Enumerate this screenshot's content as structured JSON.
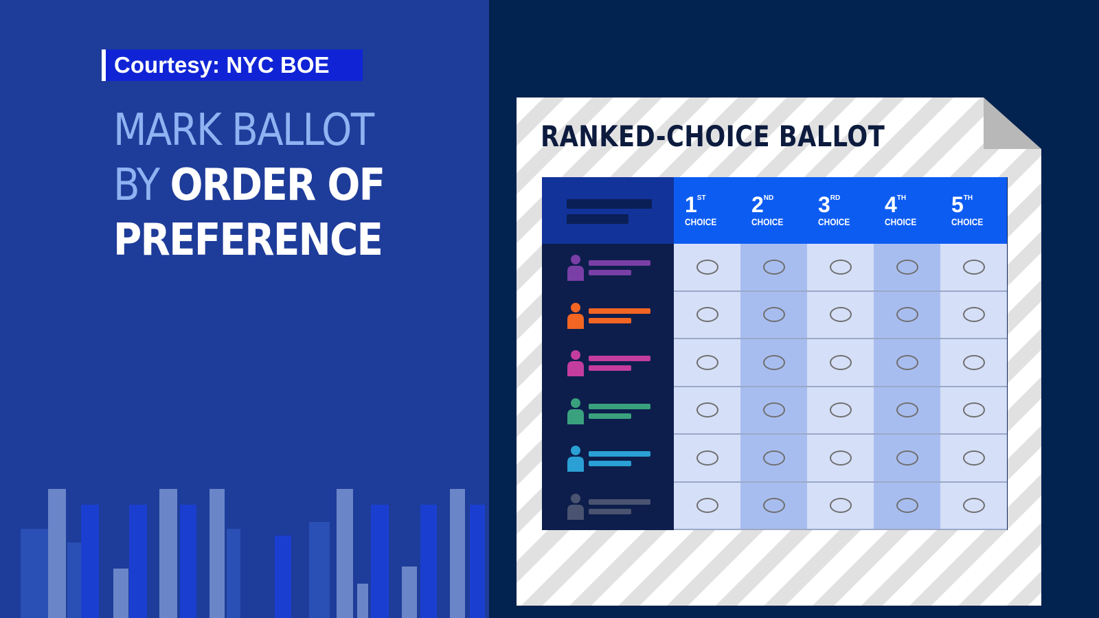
{
  "courtesy": "Courtesy: NYC BOE",
  "headline": {
    "line1": "MARK BALLOT",
    "line2_light": "BY",
    "line2_bold": "ORDER OF",
    "line3": "PREFERENCE"
  },
  "ballot": {
    "title": "RANKED-CHOICE BALLOT",
    "choices": [
      {
        "num": "1",
        "suffix": "ST",
        "word": "CHOICE"
      },
      {
        "num": "2",
        "suffix": "ND",
        "word": "CHOICE"
      },
      {
        "num": "3",
        "suffix": "RD",
        "word": "CHOICE"
      },
      {
        "num": "4",
        "suffix": "TH",
        "word": "CHOICE"
      },
      {
        "num": "5",
        "suffix": "TH",
        "word": "CHOICE"
      }
    ],
    "candidates": [
      {
        "icon": "person-icon",
        "color": "#7a3fa6"
      },
      {
        "icon": "person-icon",
        "color": "#f26522"
      },
      {
        "icon": "person-icon",
        "color": "#c43d9e"
      },
      {
        "icon": "person-icon",
        "color": "#3aa17e"
      },
      {
        "icon": "person-icon",
        "color": "#2aa0d4"
      },
      {
        "icon": "person-icon",
        "color": "#4a5470"
      }
    ]
  },
  "colors": {
    "left_panel": "#1e3c99",
    "right_panel": "#02224f",
    "courtesy_bg": "#1024d6",
    "header_blue": "#0d5cf2",
    "headline_light": "#8fb3f2"
  }
}
